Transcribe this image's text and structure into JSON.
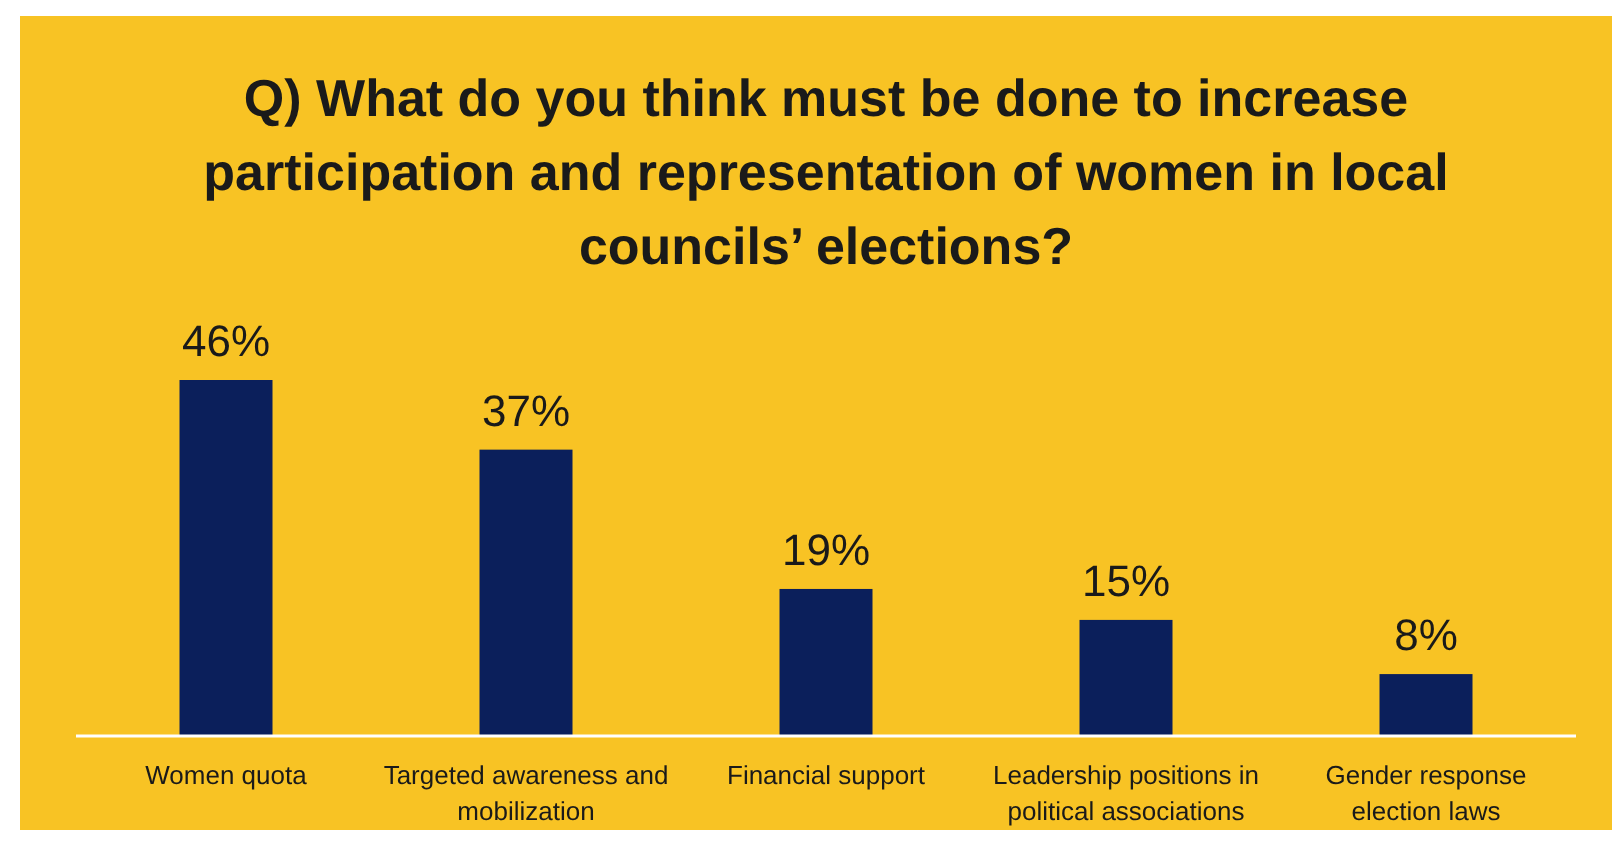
{
  "chart_data": {
    "type": "bar",
    "title": "Q) What do you think must be done to increase participation and representation of women in local councils’ elections?",
    "categories": [
      "Women quota",
      "Targeted awareness and mobilization",
      "Financial support",
      "Leadership positions in political associations",
      "Gender response election laws"
    ],
    "values": [
      46,
      37,
      19,
      15,
      8
    ],
    "value_labels": [
      "46%",
      "37%",
      "19%",
      "15%",
      "8%"
    ],
    "color": "#0b1f5b",
    "grid": false
  }
}
